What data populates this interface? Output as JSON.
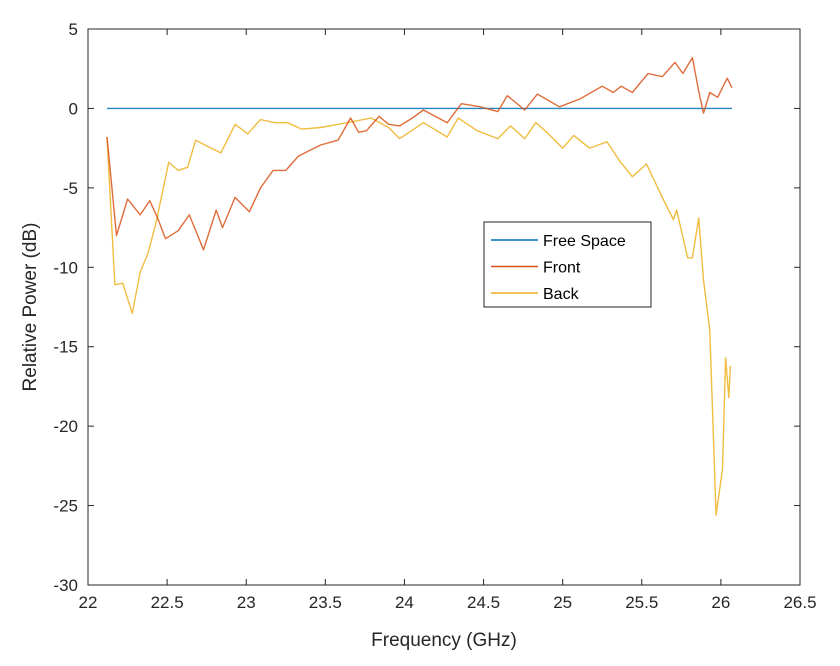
{
  "chart_data": {
    "type": "line",
    "title": "",
    "xlabel": "Frequency (GHz)",
    "ylabel": "Relative Power (dB)",
    "xlim": [
      22,
      26.5
    ],
    "ylim": [
      -30,
      5
    ],
    "xticks": [
      "22",
      "22.5",
      "23",
      "23.5",
      "24",
      "24.5",
      "25",
      "25.5",
      "26",
      "26.5"
    ],
    "yticks": [
      "5",
      "0",
      "-5",
      "-10",
      "-15",
      "-20",
      "-25",
      "-30"
    ],
    "grid": false,
    "legend_position": "center-right",
    "series": [
      {
        "name": "Free Space",
        "color": "#0072BD",
        "x": [
          22.12,
          26.07
        ],
        "y": [
          0,
          0
        ]
      },
      {
        "name": "Front",
        "color": "#D95319",
        "x": [
          22.12,
          22.18,
          22.25,
          22.33,
          22.39,
          22.44,
          22.49,
          22.57,
          22.64,
          22.73,
          22.81,
          22.85,
          22.93,
          23.02,
          23.09,
          23.17,
          23.25,
          23.33,
          23.47,
          23.58,
          23.66,
          23.71,
          23.76,
          23.84,
          23.9,
          23.97,
          24.05,
          24.12,
          24.27,
          24.36,
          24.48,
          24.59,
          24.65,
          24.76,
          24.84,
          24.98,
          25.11,
          25.25,
          25.32,
          25.37,
          25.44,
          25.54,
          25.63,
          25.71,
          25.76,
          25.82,
          25.86,
          25.89,
          25.93,
          25.98,
          26.04,
          26.07
        ],
        "y": [
          -1.8,
          -8.0,
          -5.7,
          -6.7,
          -5.8,
          -6.9,
          -8.2,
          -7.7,
          -6.7,
          -8.9,
          -6.4,
          -7.5,
          -5.6,
          -6.5,
          -5.0,
          -3.9,
          -3.9,
          -3.0,
          -2.3,
          -2.0,
          -0.6,
          -1.5,
          -1.4,
          -0.5,
          -1.0,
          -1.1,
          -0.6,
          -0.1,
          -0.9,
          0.3,
          0.1,
          -0.2,
          0.8,
          -0.1,
          0.9,
          0.1,
          0.6,
          1.4,
          1.0,
          1.4,
          1.0,
          2.2,
          2.0,
          2.9,
          2.2,
          3.2,
          1.1,
          -0.3,
          1.0,
          0.7,
          1.9,
          1.3
        ]
      },
      {
        "name": "Back",
        "color": "#EDB120",
        "x": [
          22.12,
          22.17,
          22.22,
          22.28,
          22.33,
          22.38,
          22.43,
          22.51,
          22.57,
          22.63,
          22.68,
          22.76,
          22.84,
          22.93,
          23.01,
          23.09,
          23.18,
          23.26,
          23.35,
          23.47,
          23.58,
          23.69,
          23.79,
          23.9,
          23.97,
          24.12,
          24.27,
          24.34,
          24.46,
          24.59,
          24.67,
          24.76,
          24.83,
          24.9,
          25.0,
          25.07,
          25.17,
          25.28,
          25.36,
          25.44,
          25.53,
          25.63,
          25.7,
          25.72,
          25.79,
          25.82,
          25.86,
          25.89,
          25.93,
          25.97,
          26.01,
          26.03,
          26.05,
          26.06
        ],
        "y": [
          -1.8,
          -11.1,
          -11.0,
          -12.9,
          -10.3,
          -9.1,
          -7.2,
          -3.4,
          -3.9,
          -3.7,
          -2.0,
          -2.4,
          -2.8,
          -1.0,
          -1.6,
          -0.7,
          -0.9,
          -0.9,
          -1.3,
          -1.2,
          -1.0,
          -0.8,
          -0.6,
          -1.2,
          -1.9,
          -0.9,
          -1.8,
          -0.6,
          -1.4,
          -1.9,
          -1.1,
          -1.9,
          -0.9,
          -1.5,
          -2.5,
          -1.7,
          -2.5,
          -2.1,
          -3.3,
          -4.3,
          -3.5,
          -5.6,
          -7.0,
          -6.4,
          -9.4,
          -9.4,
          -6.9,
          -10.8,
          -14.0,
          -25.6,
          -22.7,
          -15.7,
          -18.2,
          -16.2
        ]
      }
    ]
  }
}
